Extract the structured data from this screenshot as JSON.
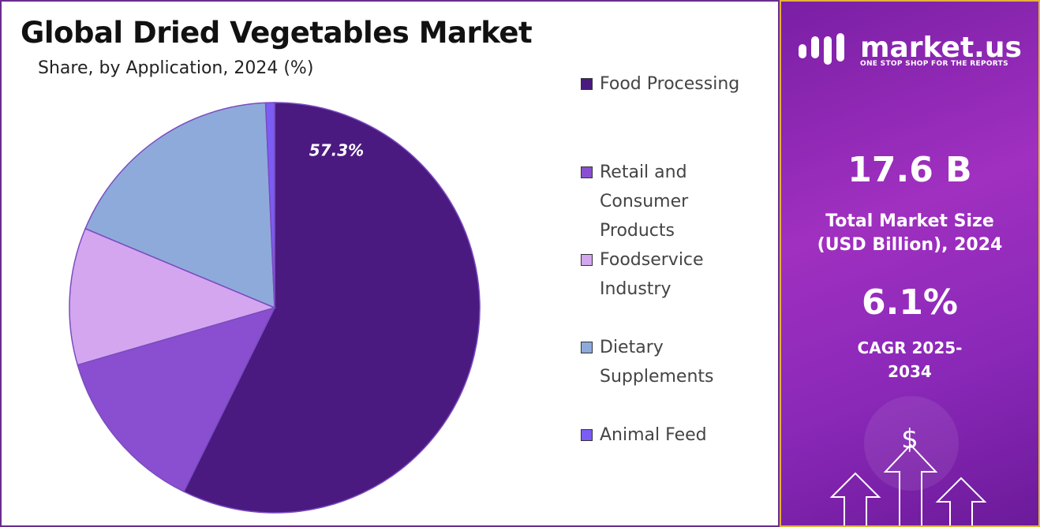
{
  "chart_data": {
    "type": "pie",
    "title": "Global Dried Vegetables Market",
    "subtitle": "Share, by Application, 2024 (%)",
    "categories": [
      "Food Processing",
      "Retail and Consumer Products",
      "Foodservice Industry",
      "Dietary Supplements",
      "Animal Feed"
    ],
    "values": [
      57.3,
      13.2,
      10.8,
      18.0,
      0.7
    ],
    "value_labels": [
      "57.3%",
      null,
      null,
      null,
      null
    ],
    "colors": [
      "#4b1a80",
      "#8a4fd0",
      "#d4a6ef",
      "#8eaadb",
      "#7b5cf5"
    ],
    "legend": "right"
  },
  "panel": {
    "brand": "market.us",
    "tagline": "ONE STOP SHOP FOR THE REPORTS",
    "market_size": "17.6 B",
    "market_size_label": "Total Market Size (USD Billion), 2024",
    "cagr": "6.1%",
    "cagr_label": "CAGR 2025-2034",
    "icon": "$"
  }
}
